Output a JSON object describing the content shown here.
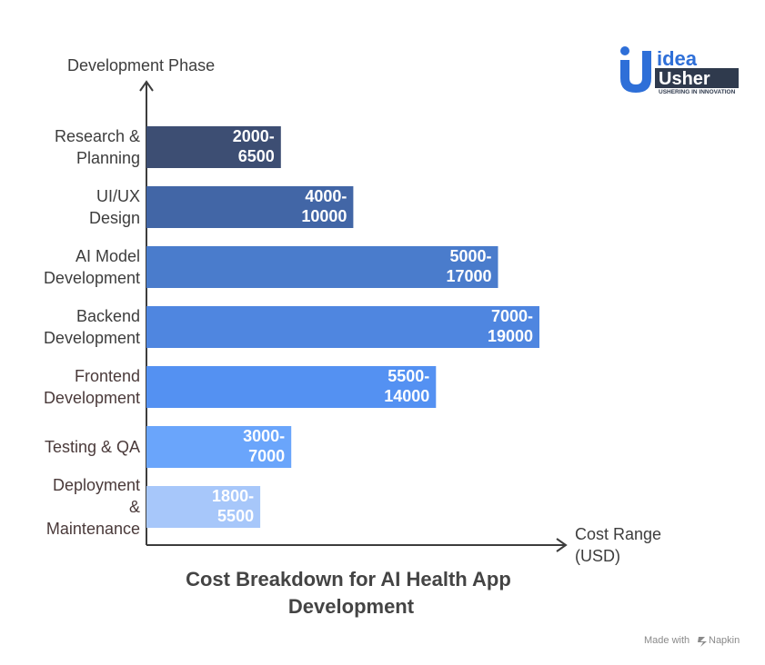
{
  "chart_data": {
    "type": "bar",
    "orientation": "horizontal",
    "title": "Cost Breakdown for AI Health App Development",
    "title_lines": [
      "Cost Breakdown for AI Health App",
      "Development"
    ],
    "ylabel": "Development Phase",
    "xlabel": "Cost Range (USD)",
    "xlabel_lines": [
      "Cost Range",
      "(USD)"
    ],
    "categories": [
      "Research & Planning",
      "UI/UX Design",
      "AI Model Development",
      "Backend Development",
      "Frontend Development",
      "Testing & QA",
      "Deployment & Maintenance"
    ],
    "category_lines": [
      [
        "Research &",
        "Planning"
      ],
      [
        "UI/UX",
        "Design"
      ],
      [
        "AI Model",
        "Development"
      ],
      [
        "Backend",
        "Development"
      ],
      [
        "Frontend",
        "Development"
      ],
      [
        "Testing & QA"
      ],
      [
        "Deployment",
        "&",
        "Maintenance"
      ]
    ],
    "ranges": [
      [
        2000,
        6500
      ],
      [
        4000,
        10000
      ],
      [
        5000,
        17000
      ],
      [
        7000,
        19000
      ],
      [
        5500,
        14000
      ],
      [
        3000,
        7000
      ],
      [
        1800,
        5500
      ]
    ],
    "labels": [
      [
        "2000-",
        "6500"
      ],
      [
        "4000-",
        "10000"
      ],
      [
        "5000-",
        "17000"
      ],
      [
        "7000-",
        "19000"
      ],
      [
        "5500-",
        "14000"
      ],
      [
        "3000-",
        "7000"
      ],
      [
        "1800-",
        "5500"
      ]
    ],
    "colors": [
      "#3d4e73",
      "#4266a6",
      "#4a7ccc",
      "#4f86e0",
      "#5491f2",
      "#6aa5fb",
      "#a7c7fa"
    ],
    "legend": "none",
    "grid": false
  },
  "logo": {
    "line1": "idea",
    "line2": "Usher",
    "tagline": "USHERING IN INNOVATION",
    "primary_color": "#2e6fd8",
    "dark_color": "#2f3a4d"
  },
  "credit": {
    "text": "Made with",
    "brand": "Napkin",
    "icon": "napkin-icon"
  }
}
